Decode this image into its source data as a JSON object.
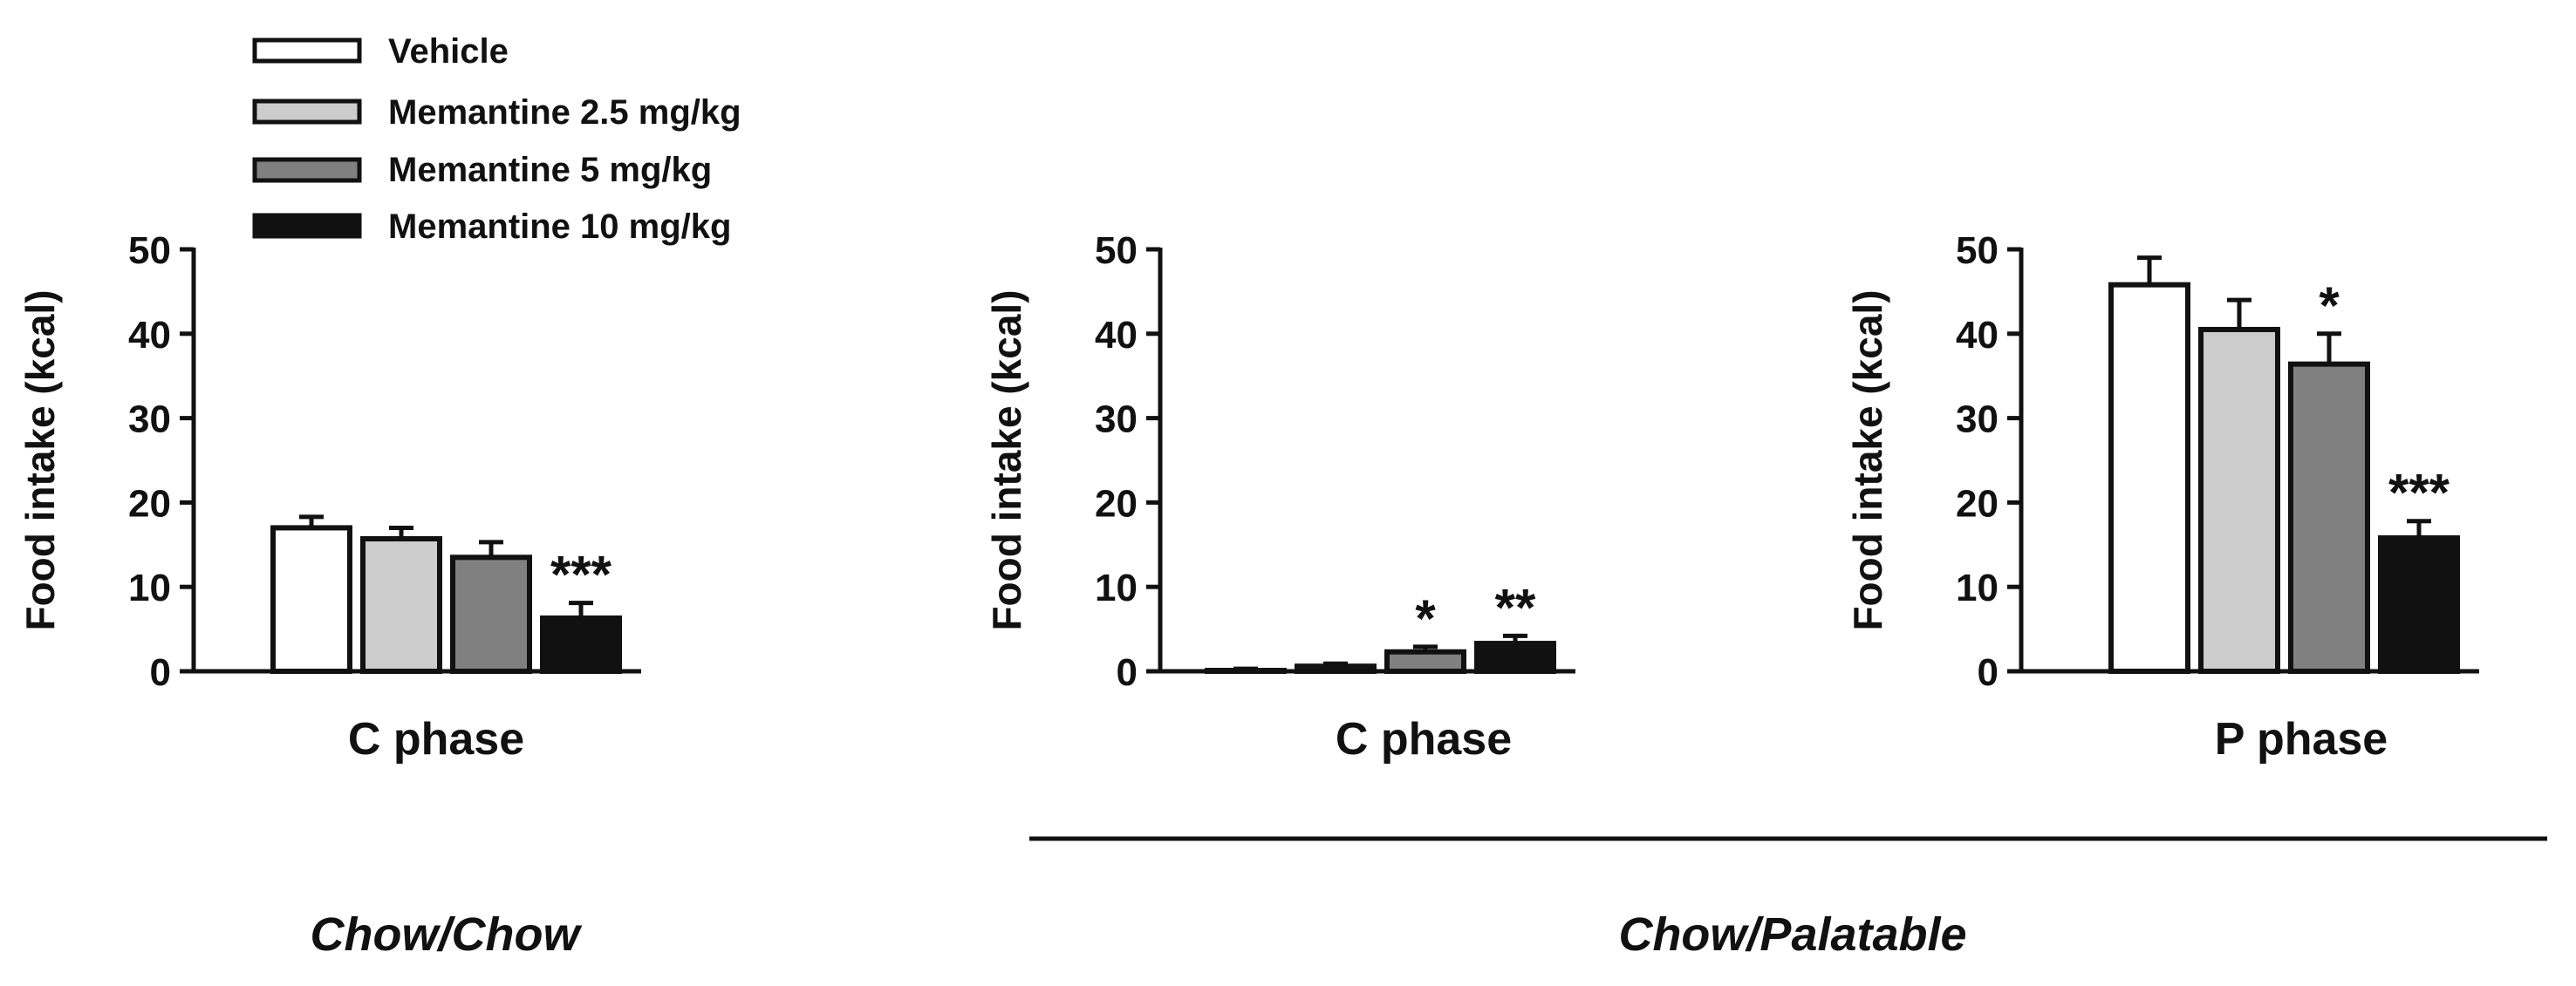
{
  "chart_data": [
    {
      "type": "bar",
      "panel": "chow-chow-c-phase",
      "categories": [
        "C phase"
      ],
      "series": [
        {
          "name": "Vehicle",
          "values": [
            17
          ],
          "error": [
            1.3
          ],
          "sig": ""
        },
        {
          "name": "Memantine 2.5 mg/kg",
          "values": [
            15.7
          ],
          "error": [
            1.3
          ],
          "sig": ""
        },
        {
          "name": "Memantine 5 mg/kg",
          "values": [
            13.5
          ],
          "error": [
            1.8
          ],
          "sig": ""
        },
        {
          "name": "Memantine 10 mg/kg",
          "values": [
            6.3
          ],
          "error": [
            1.8
          ],
          "sig": "***"
        }
      ],
      "ylabel": "Food intake (kcal)",
      "yticks": [
        "0",
        "10",
        "20",
        "30",
        "40",
        "50"
      ],
      "ylim": [
        0,
        50
      ]
    },
    {
      "type": "bar",
      "panel": "chow-palatable-c-phase",
      "categories": [
        "C phase"
      ],
      "series": [
        {
          "name": "Vehicle",
          "values": [
            0.1
          ],
          "error": [
            0.2
          ],
          "sig": ""
        },
        {
          "name": "Memantine 2.5 mg/kg",
          "values": [
            0.6
          ],
          "error": [
            0.3
          ],
          "sig": ""
        },
        {
          "name": "Memantine 5 mg/kg",
          "values": [
            2.3
          ],
          "error": [
            0.6
          ],
          "sig": "*"
        },
        {
          "name": "Memantine 10 mg/kg",
          "values": [
            3.3
          ],
          "error": [
            0.9
          ],
          "sig": "**"
        }
      ],
      "ylabel": "Food intake (kcal)",
      "yticks": [
        "0",
        "10",
        "20",
        "30",
        "40",
        "50"
      ],
      "ylim": [
        0,
        50
      ]
    },
    {
      "type": "bar",
      "panel": "chow-palatable-p-phase",
      "categories": [
        "P phase"
      ],
      "series": [
        {
          "name": "Vehicle",
          "values": [
            45.8
          ],
          "error": [
            3.2
          ],
          "sig": ""
        },
        {
          "name": "Memantine 2.5 mg/kg",
          "values": [
            40.5
          ],
          "error": [
            3.5
          ],
          "sig": ""
        },
        {
          "name": "Memantine 5 mg/kg",
          "values": [
            36.4
          ],
          "error": [
            3.6
          ],
          "sig": "*"
        },
        {
          "name": "Memantine 10 mg/kg",
          "values": [
            15.8
          ],
          "error": [
            2.0
          ],
          "sig": "***"
        }
      ],
      "ylabel": "Food intake (kcal)",
      "yticks": [
        "0",
        "10",
        "20",
        "30",
        "40",
        "50"
      ],
      "ylim": [
        0,
        50
      ]
    }
  ],
  "legend": {
    "placement": "top-left",
    "items": [
      {
        "label": "Vehicle",
        "color": "#ffffff"
      },
      {
        "label": "Memantine 2.5 mg/kg",
        "color": "#cccccc"
      },
      {
        "label": "Memantine 5 mg/kg",
        "color": "#808080"
      },
      {
        "label": "Memantine 10 mg/kg",
        "color": "#111111"
      }
    ]
  },
  "group_labels": {
    "left": "Chow/Chow",
    "right": "Chow/Palatable"
  },
  "colors": {
    "vehicle": "#ffffff",
    "mem_2_5": "#cccccc",
    "mem_5": "#808080",
    "mem_10": "#111111",
    "stroke": "#111111"
  }
}
